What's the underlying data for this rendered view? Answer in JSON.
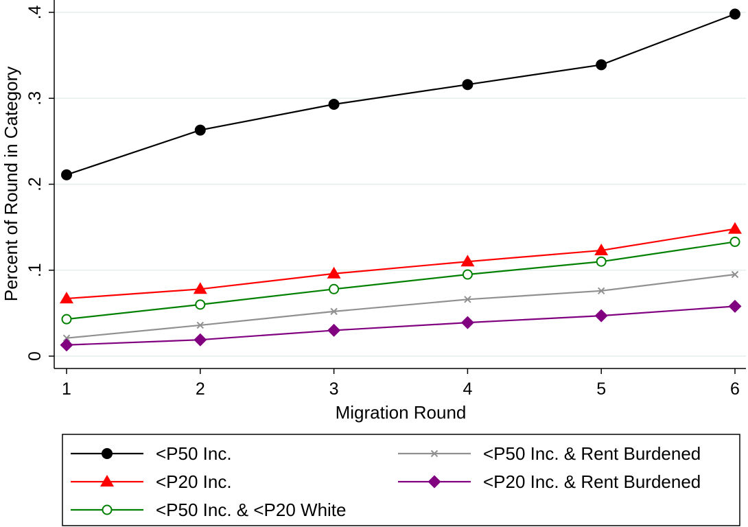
{
  "chart_data": {
    "type": "line",
    "xlabel": "Migration Round",
    "ylabel": "Percent of Round in Category",
    "x": [
      1,
      2,
      3,
      4,
      5,
      6
    ],
    "x_ticks": [
      "1",
      "2",
      "3",
      "4",
      "5",
      "6"
    ],
    "xlim": [
      1,
      6
    ],
    "ylim": [
      0,
      0.4
    ],
    "y_ticks": [
      {
        "value": 0,
        "label": "0"
      },
      {
        "value": 0.1,
        "label": ".1"
      },
      {
        "value": 0.2,
        "label": ".2"
      },
      {
        "value": 0.3,
        "label": ".3"
      },
      {
        "value": 0.4,
        "label": ".4"
      }
    ],
    "grid": true,
    "legend_position": "bottom",
    "series": [
      {
        "name": "<P50 Inc.",
        "color": "#000000",
        "marker": "filled-circle",
        "values": [
          0.211,
          0.263,
          0.293,
          0.316,
          0.339,
          0.398
        ]
      },
      {
        "name": "<P20 Inc.",
        "color": "#ff0000",
        "marker": "filled-triangle",
        "values": [
          0.067,
          0.078,
          0.096,
          0.11,
          0.123,
          0.148
        ]
      },
      {
        "name": "<P50 Inc. & <P20 White",
        "color": "#008000",
        "marker": "hollow-circle",
        "values": [
          0.043,
          0.06,
          0.078,
          0.095,
          0.11,
          0.133
        ]
      },
      {
        "name": "<P50 Inc. & Rent Burdened",
        "color": "#909090",
        "marker": "x",
        "values": [
          0.021,
          0.036,
          0.052,
          0.066,
          0.076,
          0.095
        ]
      },
      {
        "name": "<P20 Inc. & Rent Burdened",
        "color": "#800080",
        "marker": "filled-diamond",
        "values": [
          0.013,
          0.019,
          0.03,
          0.039,
          0.047,
          0.058
        ]
      }
    ]
  }
}
